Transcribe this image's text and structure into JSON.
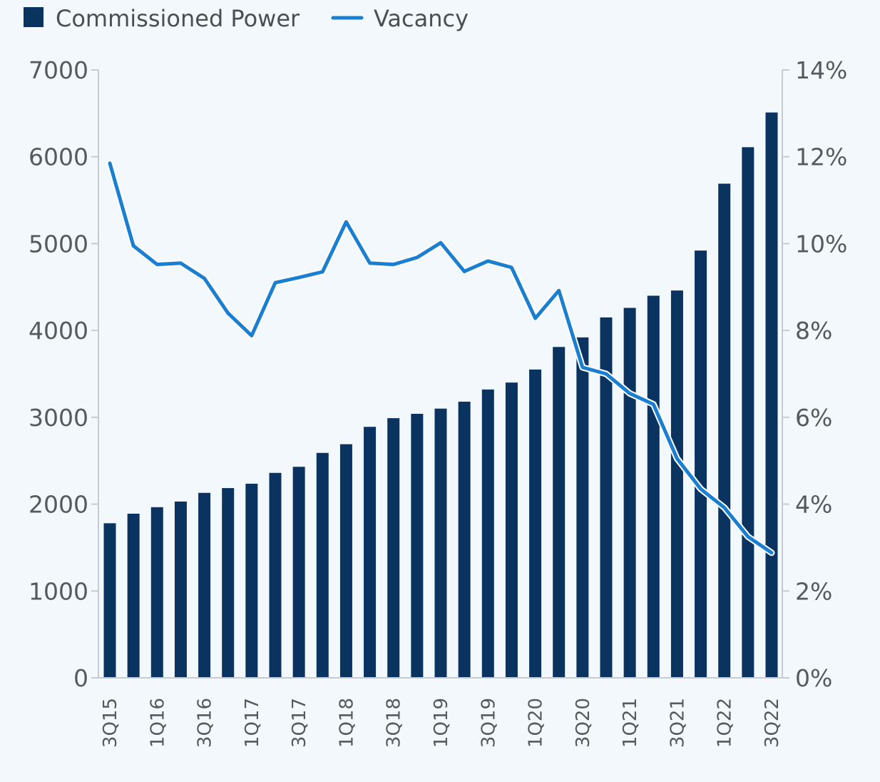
{
  "legend": {
    "bar_label": "Commissioned Power",
    "line_label": "Vacancy"
  },
  "colors": {
    "bar": "#0b3360",
    "line": "#1a7fd0",
    "axis": "#c6cbd0",
    "text": "#555a60",
    "background": "#f3f8fd"
  },
  "chart_data": {
    "type": "bar",
    "title": "",
    "xlabel": "",
    "ylabel": "",
    "categories": [
      "3Q15",
      "4Q15",
      "1Q16",
      "2Q16",
      "3Q16",
      "4Q16",
      "1Q17",
      "2Q17",
      "3Q17",
      "4Q17",
      "1Q18",
      "2Q18",
      "3Q18",
      "4Q18",
      "1Q19",
      "2Q19",
      "3Q19",
      "4Q19",
      "1Q20",
      "2Q20",
      "3Q20",
      "4Q20",
      "1Q21",
      "2Q21",
      "3Q21",
      "4Q21",
      "1Q22",
      "2Q22",
      "3Q22"
    ],
    "x_tick_labels": [
      "3Q15",
      "1Q16",
      "3Q16",
      "1Q17",
      "3Q17",
      "1Q18",
      "3Q18",
      "1Q19",
      "3Q19",
      "1Q20",
      "3Q20",
      "1Q21",
      "3Q21",
      "1Q22",
      "3Q22"
    ],
    "series": [
      {
        "name": "Commissioned Power",
        "type": "bar",
        "axis": "left",
        "values": [
          1780,
          1890,
          1965,
          2030,
          2130,
          2185,
          2235,
          2360,
          2430,
          2590,
          2690,
          2890,
          2990,
          3040,
          3100,
          3180,
          3320,
          3400,
          3550,
          3810,
          3920,
          4150,
          4260,
          4400,
          4460,
          4920,
          5690,
          6110,
          6510
        ]
      },
      {
        "name": "Vacancy",
        "type": "line",
        "axis": "right",
        "values": [
          11.85,
          9.95,
          9.52,
          9.55,
          9.2,
          8.4,
          7.88,
          9.1,
          9.22,
          9.35,
          10.5,
          9.55,
          9.52,
          9.68,
          10.02,
          9.36,
          9.6,
          9.45,
          8.28,
          8.92,
          7.15,
          7.0,
          6.55,
          6.3,
          5.05,
          4.35,
          3.92,
          3.25,
          2.88
        ]
      }
    ],
    "y_left": {
      "ylim": [
        0,
        7000
      ],
      "ticks": [
        "0",
        "1000",
        "2000",
        "3000",
        "4000",
        "5000",
        "6000",
        "7000"
      ]
    },
    "y_right": {
      "ylim": [
        0,
        14
      ],
      "ticks": [
        "0%",
        "2%",
        "4%",
        "6%",
        "8%",
        "10%",
        "12%",
        "14%"
      ]
    },
    "grid": false,
    "legend_position": "top-left"
  }
}
